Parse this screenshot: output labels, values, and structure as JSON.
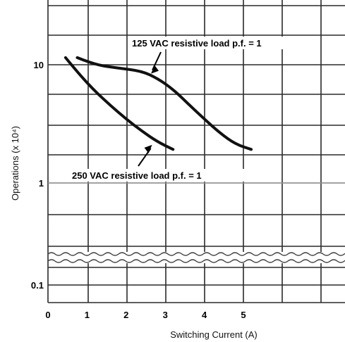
{
  "chart_data": {
    "type": "line",
    "xlabel": "Switching Current (A)",
    "ylabel": "Operations (x 10⁴)",
    "x_ticks": [
      "0",
      "1",
      "2",
      "3",
      "4",
      "5"
    ],
    "y_ticks": [
      "0.1",
      "1",
      "10"
    ],
    "xlim": [
      0,
      7.3
    ],
    "y_scale": "log",
    "axis_break": "wavy break between 0.1 and 1",
    "grid": true,
    "series": [
      {
        "name": "125 VAC resistive load p.f. = 1",
        "x": [
          0.75,
          1.2,
          1.8,
          2.4,
          2.8,
          3.2,
          3.6,
          4.0,
          4.4,
          4.8,
          5.2
        ],
        "y": [
          11.0,
          9.6,
          9.0,
          8.5,
          7.4,
          6.0,
          4.5,
          3.4,
          2.6,
          2.1,
          1.9
        ]
      },
      {
        "name": "250 VAC resistive load p.f. = 1",
        "x": [
          0.45,
          0.8,
          1.2,
          1.6,
          2.0,
          2.4,
          2.8,
          3.2
        ],
        "y": [
          11.0,
          8.0,
          5.8,
          4.4,
          3.4,
          2.7,
          2.2,
          1.9
        ]
      }
    ],
    "annotations": [
      {
        "text": "125 VAC resistive load p.f. = 1",
        "points_to": [
          2.6,
          8.0
        ]
      },
      {
        "text": "250 VAC resistive load p.f. = 1",
        "points_to": [
          2.7,
          2.1
        ]
      }
    ]
  }
}
